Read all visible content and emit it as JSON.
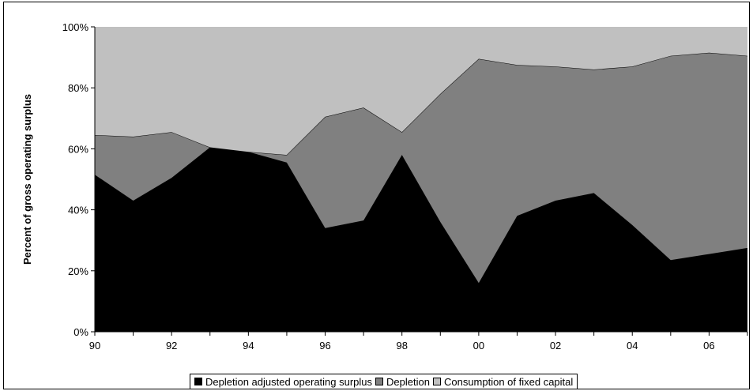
{
  "chart_data": {
    "type": "area",
    "stacked": true,
    "percent": true,
    "title": "",
    "xlabel": "",
    "ylabel": "Percent of gross operating surplus",
    "x": [
      "90",
      "91",
      "92",
      "93",
      "94",
      "95",
      "96",
      "97",
      "98",
      "99",
      "00",
      "01",
      "02",
      "03",
      "04",
      "05",
      "06",
      "07"
    ],
    "x_tick_labels": [
      "90",
      "92",
      "94",
      "96",
      "98",
      "00",
      "02",
      "04",
      "06"
    ],
    "y_tick_labels": [
      "0%",
      "20%",
      "40%",
      "60%",
      "80%",
      "100%"
    ],
    "ylim": [
      0,
      100
    ],
    "grid": false,
    "legend_position": "bottom",
    "series": [
      {
        "name": "Depletion adjusted operating surplus",
        "color": "#000000",
        "values": [
          51.5,
          43,
          50.5,
          60.5,
          59,
          55.5,
          34,
          36.5,
          58,
          36,
          16,
          38,
          43,
          45.5,
          35,
          23.5,
          25.5,
          27.5
        ]
      },
      {
        "name": "Depletion",
        "color": "#808080",
        "values": [
          13,
          21,
          15,
          0,
          0,
          2.5,
          36.5,
          37,
          7.5,
          42,
          73.5,
          49.5,
          44,
          40.5,
          52,
          67,
          66,
          63
        ]
      },
      {
        "name": "Consumption of fixed capital",
        "color": "#c0c0c0",
        "values": [
          35.5,
          36,
          34.5,
          39.5,
          41,
          42,
          29.5,
          26.5,
          34.5,
          22,
          10.5,
          12.5,
          13,
          14,
          13,
          9.5,
          8.5,
          9.5
        ]
      }
    ]
  }
}
